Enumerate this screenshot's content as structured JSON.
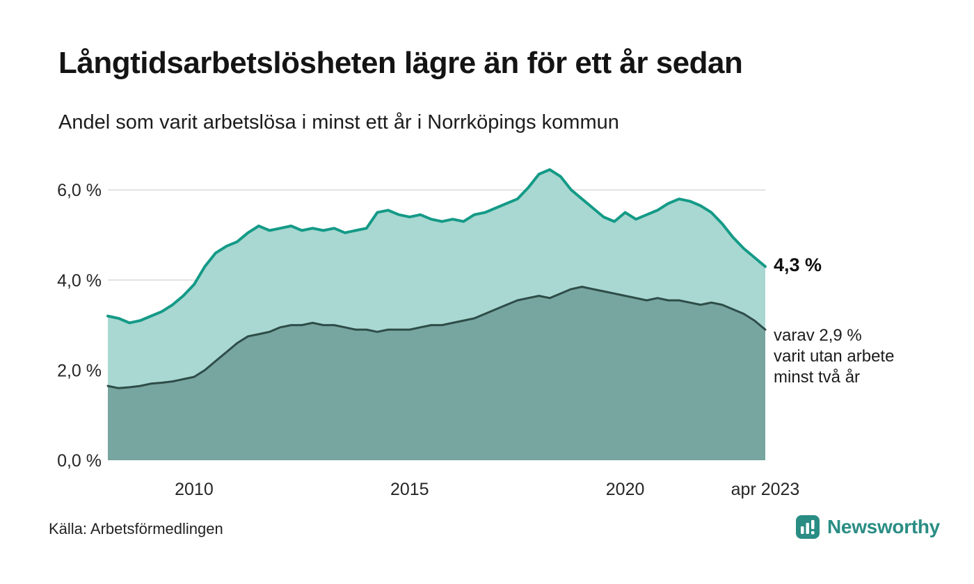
{
  "header": {
    "title": "Långtidsarbetslösheten lägre än för ett år sedan",
    "subtitle": "Andel som varit arbetslösa i minst ett år i Norrköpings kommun"
  },
  "annotations": {
    "latest_value": "4,3 %",
    "secondary_note": "varav 2,9 %\nvarit utan arbete\nminst två år"
  },
  "footer": {
    "source": "Källa: Arbetsförmedlingen",
    "brand_name": "Newsworthy"
  },
  "colors": {
    "grid": "#d9d9d9",
    "axis_text": "#262626",
    "brand_teal": "#2a8d84",
    "background": "#ffffff"
  },
  "chart_data": {
    "type": "area",
    "title": "Långtidsarbetslösheten lägre än för ett år sedan",
    "subtitle": "Andel som varit arbetslösa i minst ett år i Norrköpings kommun",
    "unit": "%",
    "grid": true,
    "x_range": [
      2008,
      2023.25
    ],
    "ylim": [
      0,
      6.6
    ],
    "y_ticks": [
      {
        "value": 0,
        "label": "0,0 %"
      },
      {
        "value": 2,
        "label": "2,0 %"
      },
      {
        "value": 4,
        "label": "4,0 %"
      },
      {
        "value": 6,
        "label": "6,0 %"
      }
    ],
    "x_ticks": [
      {
        "value": 2010,
        "label": "2010"
      },
      {
        "value": 2015,
        "label": "2015"
      },
      {
        "value": 2020,
        "label": "2020"
      },
      {
        "value": 2023.25,
        "label": "apr 2023"
      }
    ],
    "x": [
      2008,
      2008.25,
      2008.5,
      2008.75,
      2009,
      2009.25,
      2009.5,
      2009.75,
      2010,
      2010.25,
      2010.5,
      2010.75,
      2011,
      2011.25,
      2011.5,
      2011.75,
      2012,
      2012.25,
      2012.5,
      2012.75,
      2013,
      2013.25,
      2013.5,
      2013.75,
      2014,
      2014.25,
      2014.5,
      2014.75,
      2015,
      2015.25,
      2015.5,
      2015.75,
      2016,
      2016.25,
      2016.5,
      2016.75,
      2017,
      2017.25,
      2017.5,
      2017.75,
      2018,
      2018.25,
      2018.5,
      2018.75,
      2019,
      2019.25,
      2019.5,
      2019.75,
      2020,
      2020.25,
      2020.5,
      2020.75,
      2021,
      2021.25,
      2021.5,
      2021.75,
      2022,
      2022.25,
      2022.5,
      2022.75,
      2023,
      2023.25
    ],
    "series": [
      {
        "id": "minst-ett-ar",
        "name": "Arbetslösa minst ett år",
        "line_color": "#149a87",
        "fill_color": "#a8d8d1",
        "line_width": 4,
        "latest_value": 4.3,
        "values": [
          3.2,
          3.15,
          3.05,
          3.1,
          3.2,
          3.3,
          3.45,
          3.65,
          3.9,
          4.3,
          4.6,
          4.75,
          4.85,
          5.05,
          5.2,
          5.1,
          5.15,
          5.2,
          5.1,
          5.15,
          5.1,
          5.15,
          5.05,
          5.1,
          5.15,
          5.5,
          5.55,
          5.45,
          5.4,
          5.45,
          5.35,
          5.3,
          5.35,
          5.3,
          5.45,
          5.5,
          5.6,
          5.7,
          5.8,
          6.05,
          6.35,
          6.45,
          6.3,
          6.0,
          5.8,
          5.6,
          5.4,
          5.3,
          5.5,
          5.35,
          5.45,
          5.55,
          5.7,
          5.8,
          5.75,
          5.65,
          5.5,
          5.25,
          4.95,
          4.7,
          4.5,
          4.3
        ]
      },
      {
        "id": "minst-tva-ar",
        "name": "Arbetslösa minst två år",
        "line_color": "#2e4c48",
        "fill_color": "#77a59f",
        "line_width": 3,
        "latest_value": 2.9,
        "values": [
          1.65,
          1.6,
          1.62,
          1.65,
          1.7,
          1.72,
          1.75,
          1.8,
          1.85,
          2.0,
          2.2,
          2.4,
          2.6,
          2.75,
          2.8,
          2.85,
          2.95,
          3.0,
          3.0,
          3.05,
          3.0,
          3.0,
          2.95,
          2.9,
          2.9,
          2.85,
          2.9,
          2.9,
          2.9,
          2.95,
          3.0,
          3.0,
          3.05,
          3.1,
          3.15,
          3.25,
          3.35,
          3.45,
          3.55,
          3.6,
          3.65,
          3.6,
          3.7,
          3.8,
          3.85,
          3.8,
          3.75,
          3.7,
          3.65,
          3.6,
          3.55,
          3.6,
          3.55,
          3.55,
          3.5,
          3.45,
          3.5,
          3.45,
          3.35,
          3.25,
          3.1,
          2.9
        ]
      }
    ],
    "annotations": [
      {
        "series": "minst-ett-ar",
        "x": 2023.25,
        "value": 4.3,
        "label": "4,3 %"
      },
      {
        "series": "minst-tva-ar",
        "x": 2023.25,
        "value": 2.9,
        "label": "varav 2,9 % varit utan arbete minst två år"
      }
    ]
  }
}
